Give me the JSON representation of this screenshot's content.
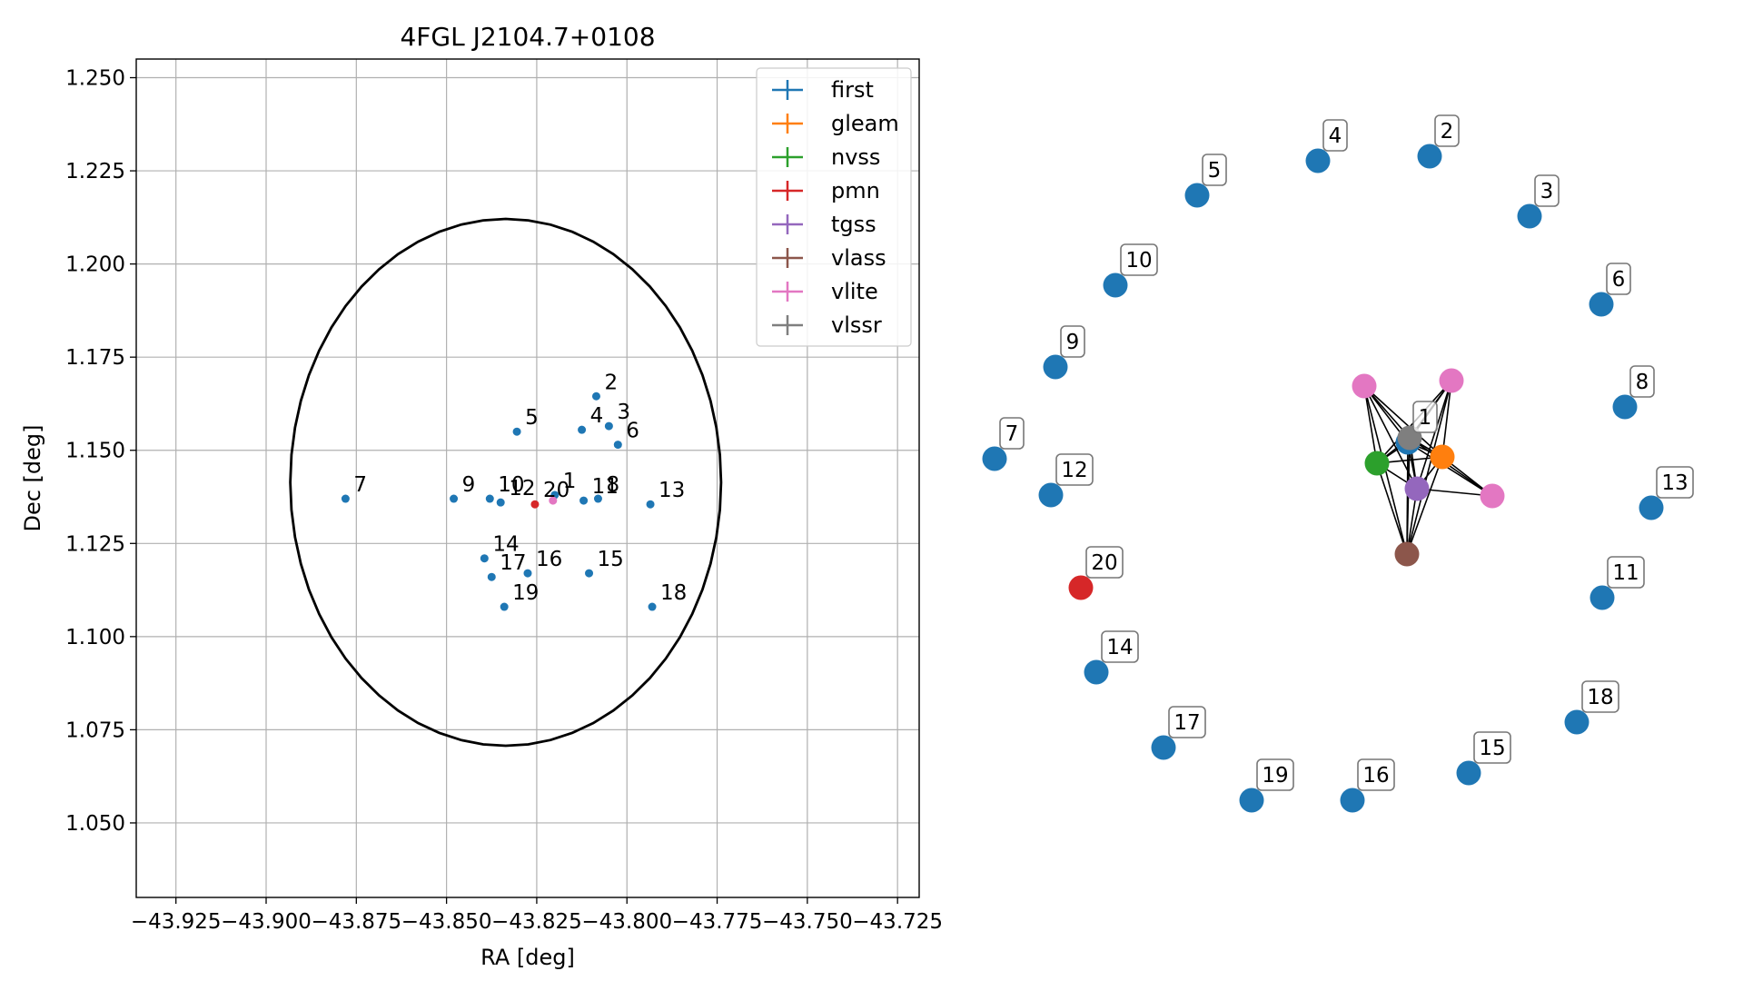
{
  "chart_data": [
    {
      "type": "scatter",
      "title": "4FGL J2104.7+0108",
      "xlabel": "RA [deg]",
      "ylabel": "Dec [deg]",
      "xlim": [
        -43.936,
        -43.719
      ],
      "ylim": [
        1.03,
        1.255
      ],
      "grid": true,
      "legend_position": "top-right",
      "xticks": [
        -43.925,
        -43.9,
        -43.875,
        -43.85,
        -43.825,
        -43.8,
        -43.775,
        -43.75,
        -43.725
      ],
      "xtick_labels": [
        "−43.925",
        "−43.900",
        "−43.875",
        "−43.850",
        "−43.825",
        "−43.800",
        "−43.775",
        "−43.750",
        "−43.725"
      ],
      "yticks": [
        1.05,
        1.075,
        1.1,
        1.125,
        1.15,
        1.175,
        1.2,
        1.225,
        1.25
      ],
      "ytick_labels": [
        "1.050",
        "1.075",
        "1.100",
        "1.125",
        "1.150",
        "1.175",
        "1.200",
        "1.225",
        "1.250"
      ],
      "ellipse": {
        "center": [
          -43.8336,
          1.1414
        ],
        "semi_axis_ra": 0.0597,
        "semi_axis_dec": 0.0707
      },
      "series": [
        {
          "name": "first",
          "color": "#1f77b4",
          "points": [
            {
              "label": "1",
              "x": -43.82,
              "y": 1.138
            },
            {
              "label": "2",
              "x": -43.8085,
              "y": 1.1645
            },
            {
              "label": "3",
              "x": -43.805,
              "y": 1.1565
            },
            {
              "label": "4",
              "x": -43.8125,
              "y": 1.1555
            },
            {
              "label": "5",
              "x": -43.8305,
              "y": 1.155
            },
            {
              "label": "6",
              "x": -43.8025,
              "y": 1.1515
            },
            {
              "label": "7",
              "x": -43.878,
              "y": 1.137
            },
            {
              "label": "8",
              "x": -43.808,
              "y": 1.137
            },
            {
              "label": "9",
              "x": -43.848,
              "y": 1.137
            },
            {
              "label": "10",
              "x": -43.838,
              "y": 1.137
            },
            {
              "label": "11",
              "x": -43.812,
              "y": 1.1365
            },
            {
              "label": "12",
              "x": -43.835,
              "y": 1.136
            },
            {
              "label": "13",
              "x": -43.7935,
              "y": 1.1355
            },
            {
              "label": "14",
              "x": -43.8395,
              "y": 1.121
            },
            {
              "label": "15",
              "x": -43.8105,
              "y": 1.117
            },
            {
              "label": "16",
              "x": -43.8275,
              "y": 1.117
            },
            {
              "label": "17",
              "x": -43.8375,
              "y": 1.116
            },
            {
              "label": "18",
              "x": -43.793,
              "y": 1.108
            },
            {
              "label": "19",
              "x": -43.834,
              "y": 1.108
            }
          ]
        },
        {
          "name": "gleam",
          "color": "#ff7f0e",
          "points": []
        },
        {
          "name": "nvss",
          "color": "#2ca02c",
          "points": []
        },
        {
          "name": "pmn",
          "color": "#d62728",
          "points": [
            {
              "label": "20",
              "x": -43.8255,
              "y": 1.1355
            }
          ]
        },
        {
          "name": "tgss",
          "color": "#9467bd",
          "points": []
        },
        {
          "name": "vlass",
          "color": "#8c564b",
          "points": []
        },
        {
          "name": "vlite",
          "color": "#e377c2",
          "points": [
            {
              "label": "",
              "x": -43.8205,
              "y": 1.1365
            }
          ]
        },
        {
          "name": "vlssr",
          "color": "#7f7f7f",
          "points": []
        }
      ]
    },
    {
      "type": "network",
      "nodes": [
        {
          "id": "n1",
          "label": "1",
          "series": "first",
          "color": "#1f77b4"
        },
        {
          "id": "n2",
          "label": "2",
          "series": "first",
          "color": "#1f77b4"
        },
        {
          "id": "n3",
          "label": "3",
          "series": "first",
          "color": "#1f77b4"
        },
        {
          "id": "n4",
          "label": "4",
          "series": "first",
          "color": "#1f77b4"
        },
        {
          "id": "n5",
          "label": "5",
          "series": "first",
          "color": "#1f77b4"
        },
        {
          "id": "n6",
          "label": "6",
          "series": "first",
          "color": "#1f77b4"
        },
        {
          "id": "n7",
          "label": "7",
          "series": "first",
          "color": "#1f77b4"
        },
        {
          "id": "n8",
          "label": "8",
          "series": "first",
          "color": "#1f77b4"
        },
        {
          "id": "n9",
          "label": "9",
          "series": "first",
          "color": "#1f77b4"
        },
        {
          "id": "n10",
          "label": "10",
          "series": "first",
          "color": "#1f77b4"
        },
        {
          "id": "n11",
          "label": "11",
          "series": "first",
          "color": "#1f77b4"
        },
        {
          "id": "n12",
          "label": "12",
          "series": "first",
          "color": "#1f77b4"
        },
        {
          "id": "n13",
          "label": "13",
          "series": "first",
          "color": "#1f77b4"
        },
        {
          "id": "n14",
          "label": "14",
          "series": "first",
          "color": "#1f77b4"
        },
        {
          "id": "n15",
          "label": "15",
          "series": "first",
          "color": "#1f77b4"
        },
        {
          "id": "n16",
          "label": "16",
          "series": "first",
          "color": "#1f77b4"
        },
        {
          "id": "n17",
          "label": "17",
          "series": "first",
          "color": "#1f77b4"
        },
        {
          "id": "n18",
          "label": "18",
          "series": "first",
          "color": "#1f77b4"
        },
        {
          "id": "n19",
          "label": "19",
          "series": "first",
          "color": "#1f77b4"
        },
        {
          "id": "n20",
          "label": "20",
          "series": "pmn",
          "color": "#d62728"
        },
        {
          "id": "gl",
          "label": "",
          "series": "gleam",
          "color": "#ff7f0e"
        },
        {
          "id": "nv",
          "label": "",
          "series": "nvss",
          "color": "#2ca02c"
        },
        {
          "id": "tg",
          "label": "",
          "series": "tgss",
          "color": "#9467bd"
        },
        {
          "id": "vl",
          "label": "",
          "series": "vlass",
          "color": "#8c564b"
        },
        {
          "id": "vs",
          "label": "",
          "series": "vlssr",
          "color": "#7f7f7f"
        },
        {
          "id": "vt1",
          "label": "",
          "series": "vlite",
          "color": "#e377c2"
        },
        {
          "id": "vt2",
          "label": "",
          "series": "vlite",
          "color": "#e377c2"
        },
        {
          "id": "vt3",
          "label": "",
          "series": "vlite",
          "color": "#e377c2"
        }
      ],
      "edges": [
        [
          "vt1",
          "vs"
        ],
        [
          "vt1",
          "nv"
        ],
        [
          "vt1",
          "tg"
        ],
        [
          "vt1",
          "n1"
        ],
        [
          "vt1",
          "gl"
        ],
        [
          "vt1",
          "vl"
        ],
        [
          "vt2",
          "vs"
        ],
        [
          "vt2",
          "nv"
        ],
        [
          "vt2",
          "tg"
        ],
        [
          "vt2",
          "gl"
        ],
        [
          "vt2",
          "n1"
        ],
        [
          "vt2",
          "vl"
        ],
        [
          "vt3",
          "vs"
        ],
        [
          "vt3",
          "tg"
        ],
        [
          "vt3",
          "gl"
        ],
        [
          "vt3",
          "n1"
        ],
        [
          "vs",
          "nv"
        ],
        [
          "vs",
          "tg"
        ],
        [
          "vs",
          "gl"
        ],
        [
          "vs",
          "n1"
        ],
        [
          "vs",
          "vl"
        ],
        [
          "nv",
          "tg"
        ],
        [
          "nv",
          "gl"
        ],
        [
          "nv",
          "n1"
        ],
        [
          "nv",
          "vl"
        ],
        [
          "tg",
          "gl"
        ],
        [
          "tg",
          "n1"
        ],
        [
          "tg",
          "vl"
        ],
        [
          "gl",
          "n1"
        ],
        [
          "gl",
          "vl"
        ],
        [
          "n1",
          "vl"
        ]
      ]
    }
  ]
}
